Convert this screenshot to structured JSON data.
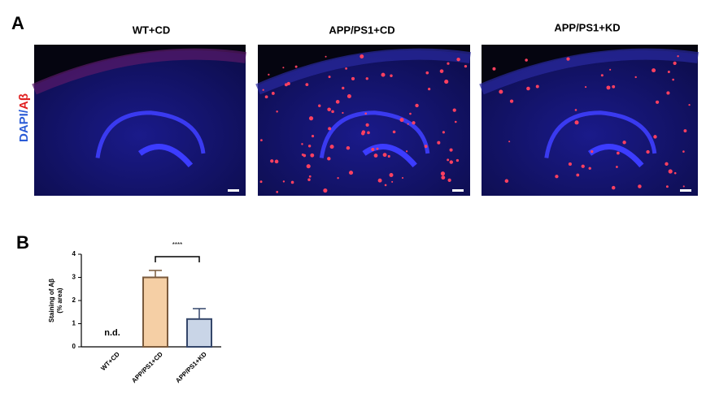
{
  "panel_a": {
    "label": "A",
    "stain_dapi": "DAPI/",
    "stain_abeta": "Aβ",
    "images": [
      {
        "title": "WT+CD"
      },
      {
        "title": "APP/PS1+CD"
      },
      {
        "title": "APP/PS1+KD"
      }
    ]
  },
  "chart_data": {
    "type": "bar",
    "panel_label": "B",
    "ylabel": [
      "Staining of Aβ",
      "(% area)"
    ],
    "categories": [
      "WT+CD",
      "APP/PS1+CD",
      "APP/PS1+KD"
    ],
    "values": [
      null,
      3.0,
      1.2
    ],
    "errors": [
      null,
      0.3,
      0.45
    ],
    "colors": [
      null,
      "#f5cfa5",
      "#c9d5e7"
    ],
    "edge_colors": [
      null,
      "#7a5a3c",
      "#34466a"
    ],
    "ylim": [
      0,
      4
    ],
    "yticks": [
      0,
      1,
      2,
      3,
      4
    ],
    "nd_label": "n.d.",
    "significance": "****"
  }
}
